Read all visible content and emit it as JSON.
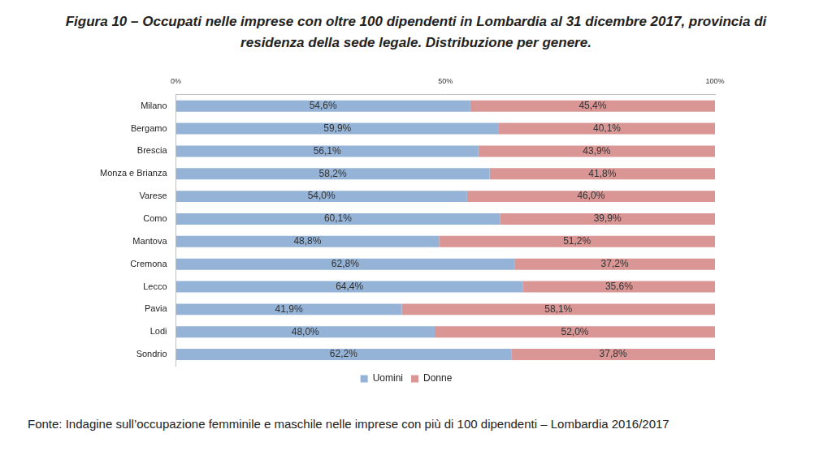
{
  "chart_data": {
    "type": "bar",
    "title": "Figura 10 – Occupati nelle imprese con oltre 100 dipendenti in Lombardia al 31 dicembre 2017, provincia di residenza della sede legale. Distribuzione per genere.",
    "source": "Fonte: Indagine sull’occupazione femminile e maschile nelle imprese con più di 100 dipendenti – Lombardia 2016/2017",
    "orientation": "horizontal",
    "stacked": true,
    "data_labels": true,
    "grid": false,
    "legend": "bottom",
    "categories": [
      "Milano",
      "Bergamo",
      "Brescia",
      "Monza e Brianza",
      "Varese",
      "Como",
      "Mantova",
      "Cremona",
      "Lecco",
      "Pavia",
      "Lodi",
      "Sondrio"
    ],
    "series": [
      {
        "name": "Uomini",
        "color": "#95b3d7",
        "values": [
          54.6,
          59.9,
          56.1,
          58.2,
          54.0,
          60.1,
          48.8,
          62.8,
          64.4,
          41.9,
          48.0,
          62.2
        ],
        "value_labels": [
          "54,6%",
          "59,9%",
          "56,1%",
          "58,2%",
          "54,0%",
          "60,1%",
          "48,8%",
          "62,8%",
          "64,4%",
          "41,9%",
          "48,0%",
          "62,2%"
        ]
      },
      {
        "name": "Donne",
        "color": "#d99694",
        "values": [
          45.4,
          40.1,
          43.9,
          41.8,
          46.0,
          39.9,
          51.2,
          37.2,
          35.6,
          58.1,
          52.0,
          37.8
        ],
        "value_labels": [
          "45,4%",
          "40,1%",
          "43,9%",
          "41,8%",
          "46,0%",
          "39,9%",
          "51,2%",
          "37,2%",
          "35,6%",
          "58,1%",
          "52,0%",
          "37,8%"
        ]
      }
    ],
    "xlim": [
      0,
      100
    ],
    "xticks": [
      {
        "value": 0,
        "label": "0%"
      },
      {
        "value": 50,
        "label": "50%"
      },
      {
        "value": 100,
        "label": "100%"
      }
    ]
  }
}
